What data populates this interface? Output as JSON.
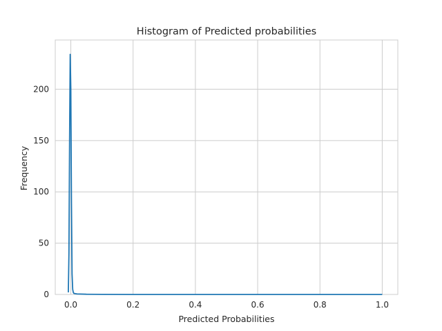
{
  "chart_data": {
    "type": "line",
    "title": "Histogram of Predicted probabilities",
    "xlabel": "Predicted Probabilities",
    "ylabel": "Frequency",
    "xlim": [
      -0.05,
      1.05
    ],
    "ylim": [
      0,
      248
    ],
    "xticks": [
      0.0,
      0.2,
      0.4,
      0.6,
      0.8,
      1.0
    ],
    "xtick_labels": [
      "0.0",
      "0.2",
      "0.4",
      "0.6",
      "0.8",
      "1.0"
    ],
    "yticks": [
      0,
      50,
      100,
      150,
      200
    ],
    "ytick_labels": [
      "0",
      "50",
      "100",
      "150",
      "200"
    ],
    "grid": true,
    "series": [
      {
        "color": "#1f77b4",
        "x": [
          -0.008,
          -0.006,
          -0.004,
          -0.002,
          0.0,
          0.002,
          0.004,
          0.006,
          0.008,
          0.01,
          0.02,
          0.05,
          0.1,
          0.2,
          0.4,
          0.6,
          0.8,
          1.0
        ],
        "y": [
          2,
          40,
          150,
          234,
          200,
          90,
          20,
          5,
          2,
          1,
          0.5,
          0.2,
          0.1,
          0,
          0,
          0,
          0,
          0
        ]
      }
    ]
  }
}
